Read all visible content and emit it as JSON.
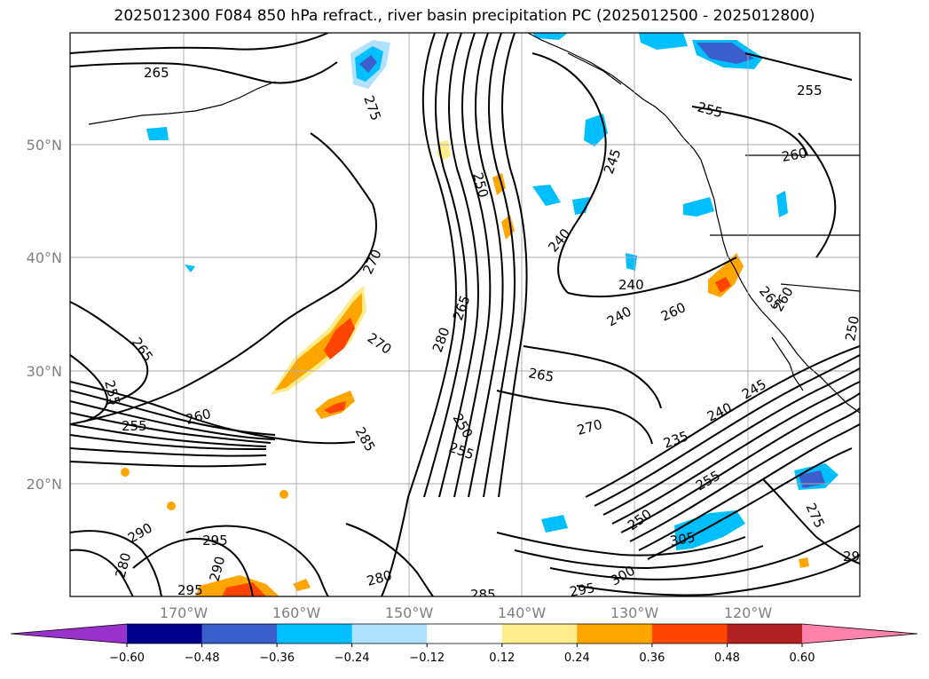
{
  "title": "2025012300 F084 850 hPa refract., river basin precipitation PC (2025012500 - 2025012800)",
  "lat_labels": [
    "50°N",
    "40°N",
    "30°N",
    "20°N"
  ],
  "lon_labels": [
    "170°W",
    "160°W",
    "150°W",
    "140°W",
    "130°W",
    "120°W"
  ],
  "contour_labels": [
    "265",
    "275",
    "265",
    "255",
    "260",
    "255",
    "270",
    "270",
    "250",
    "280",
    "265",
    "250",
    "255",
    "285",
    "290",
    "295",
    "290",
    "280",
    "295",
    "280",
    "285",
    "295",
    "300",
    "240",
    "245",
    "255",
    "255",
    "260",
    "240",
    "240",
    "260",
    "265",
    "260",
    "250",
    "265",
    "270",
    "235",
    "240",
    "245",
    "250",
    "255",
    "305",
    "275",
    "29"
  ],
  "colorbar": {
    "colors": [
      "#9932cc",
      "#00008b",
      "#3a5fcd",
      "#00bfff",
      "#b0e2ff",
      "#ffffff",
      "#ffec8b",
      "#ffa500",
      "#ff4500",
      "#b22222",
      "#ff82ab"
    ],
    "tick_labels": [
      "−0.60",
      "−0.48",
      "−0.36",
      "−0.24",
      "−0.12",
      "0.12",
      "0.24",
      "0.36",
      "0.48",
      "0.60"
    ]
  }
}
